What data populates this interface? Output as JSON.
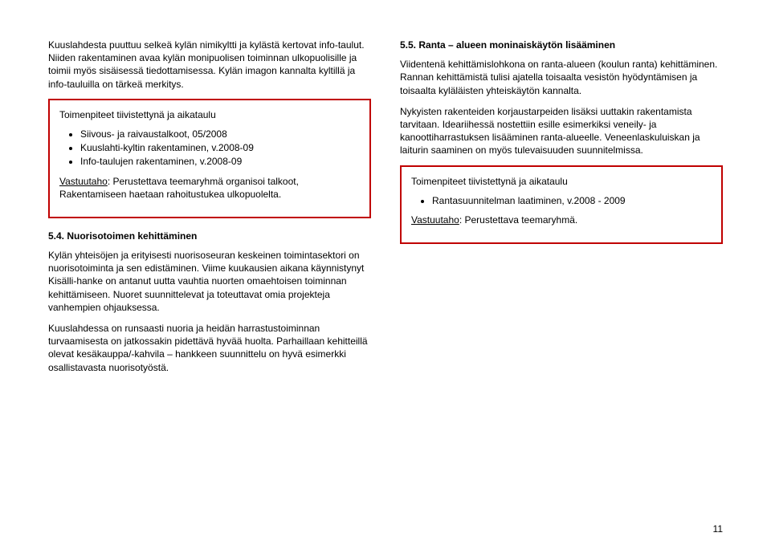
{
  "colors": {
    "box_border": "#c00000",
    "text": "#000000"
  },
  "left": {
    "intro": "Kuuslahdesta puuttuu selkeä kylän nimikyltti ja kylästä kertovat info-taulut. Niiden rakentaminen avaa kylän monipuolisen toiminnan ulkopuolisille ja toimii myös sisäisessä tiedottamisessa. Kylän imagon kannalta kyltillä ja info-tauluilla on tärkeä merkitys.",
    "box1": {
      "title": "Toimenpiteet tiivistettynä ja aikataulu",
      "items": [
        "Siivous- ja raivaustalkoot, 05/2008",
        "Kuuslahti-kyltin rakentaminen, v.2008-09",
        "Info-taulujen rakentaminen, v.2008-09"
      ],
      "vastuu_label": "Vastuutaho",
      "vastuu_text": ": Perustettava teemaryhmä organisoi talkoot, Rakentamiseen haetaan rahoitustukea ulkopuolelta."
    },
    "h54": "5.4.   Nuorisotoimen kehittäminen",
    "p54": "Kylän yhteisöjen ja erityisesti nuorisoseuran keskeinen toimintasektori on nuorisotoiminta ja sen edistäminen. Viime kuukausien aikana käynnistynyt Kisälli-hanke on antanut uutta vauhtia nuorten omaehtoisen toiminnan kehittämiseen. Nuoret suunnittelevat ja toteuttavat omia projekteja vanhempien ohjauksessa.",
    "p54b": "Kuuslahdessa on runsaasti nuoria ja heidän harrastustoiminnan turvaamisesta on jatkossakin pidettävä hyvää huolta. Parhaillaan kehitteillä olevat kesäkauppa/-kahvila – hankkeen suunnittelu on hyvä esimerkki osallistavasta nuorisotyöstä."
  },
  "right": {
    "h55": "5.5.   Ranta – alueen moninaiskäytön lisääminen",
    "p55a": "Viidentenä kehittämislohkona on ranta-alueen (koulun ranta) kehittäminen. Rannan kehittämistä tulisi ajatella toisaalta vesistön hyödyntämisen ja toisaalta kyläläisten yhteiskäytön kannalta.",
    "p55b": "Nykyisten rakenteiden korjaustarpeiden lisäksi uuttakin rakentamista tarvitaan. Ideariihessä nostettiin esille esimerkiksi veneily- ja kanoottiharrastuksen lisääminen ranta-alueelle. Veneenlaskuluiskan ja laiturin saaminen on myös tulevaisuuden suunnitelmissa.",
    "box2": {
      "title": "Toimenpiteet tiivistettynä ja aikataulu",
      "items": [
        "Rantasuunnitelman laatiminen, v.2008 - 2009"
      ],
      "vastuu_label": "Vastuutaho",
      "vastuu_text": ": Perustettava teemaryhmä."
    }
  },
  "pagenum": "11"
}
